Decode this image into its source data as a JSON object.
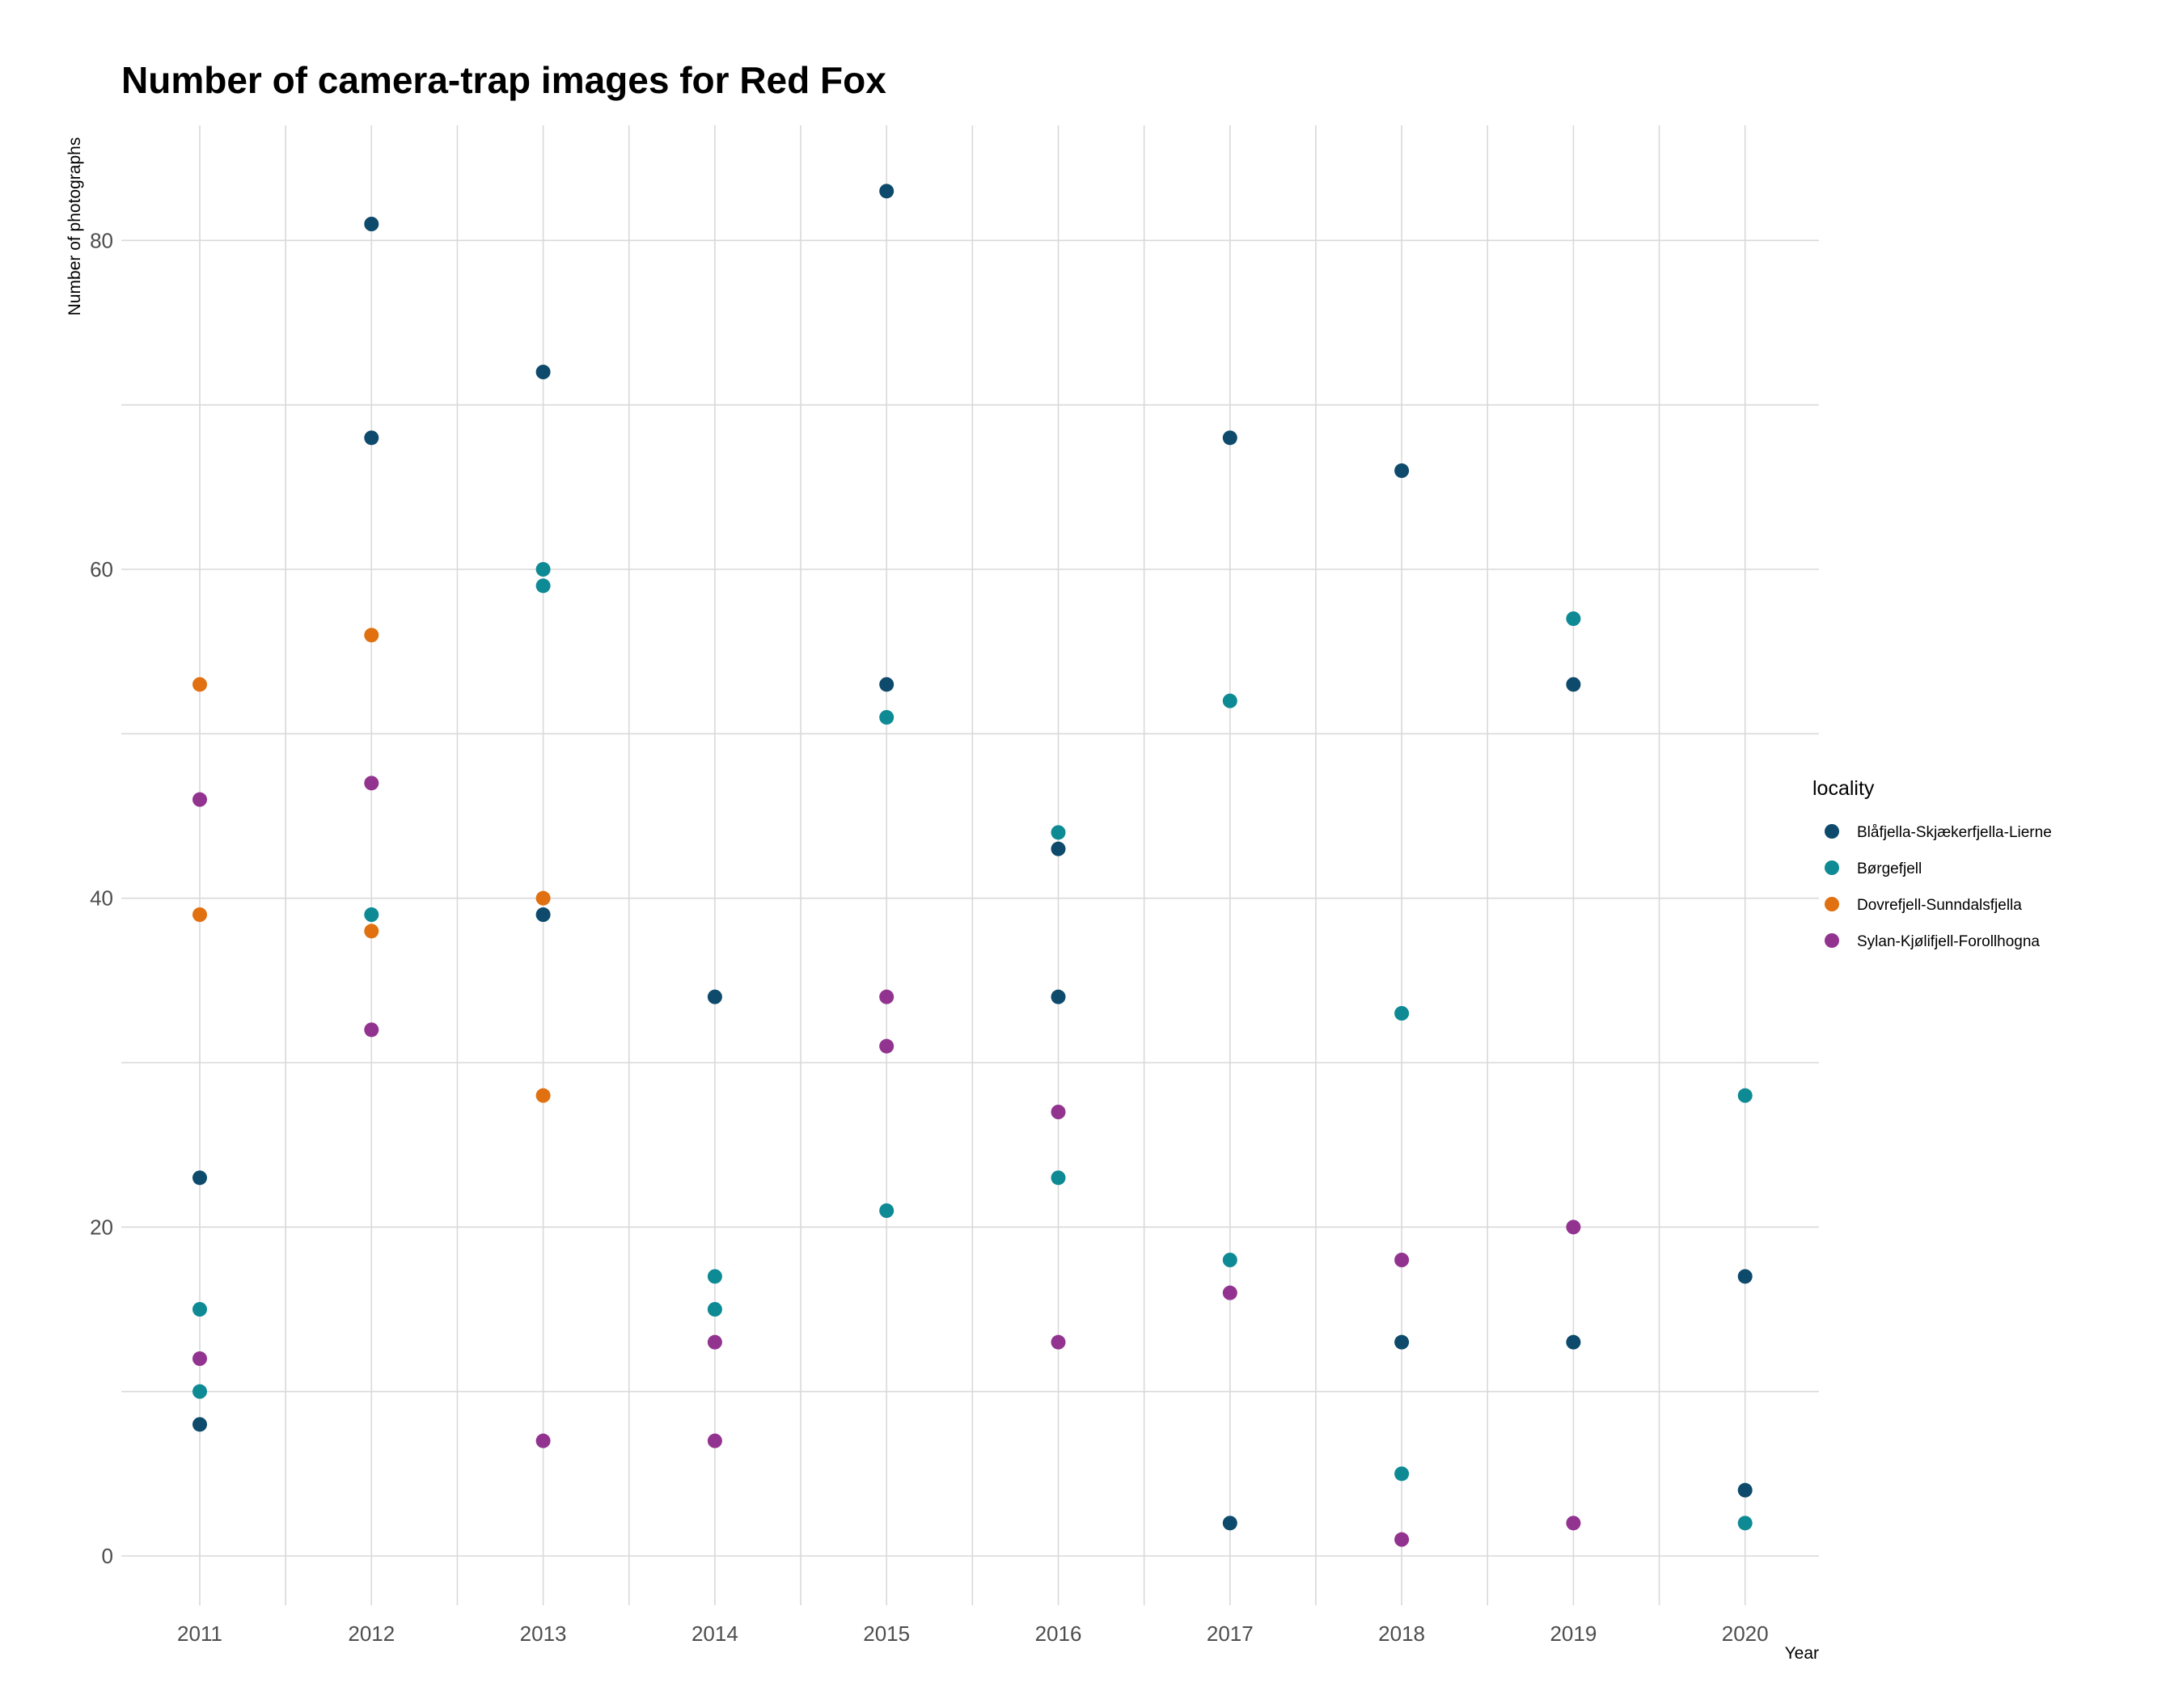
{
  "chart_data": {
    "type": "scatter",
    "title": "Number of camera-trap images for Red Fox",
    "xlabel": "Year",
    "ylabel": "Number of photographs",
    "x_categories": [
      "2011",
      "2012",
      "2013",
      "2014",
      "2015",
      "2016",
      "2017",
      "2018",
      "2019",
      "2020"
    ],
    "y_ticks": [
      0,
      20,
      40,
      60,
      80
    ],
    "ylim": [
      -3,
      87
    ],
    "grid": true,
    "legend": {
      "title": "locality",
      "placement": "right"
    },
    "series": [
      {
        "name": "Blåfjella-Skjækerfjella-Lierne",
        "color": "#0d4a6b",
        "points": [
          {
            "x": "2011",
            "y": 23
          },
          {
            "x": "2011",
            "y": 8
          },
          {
            "x": "2012",
            "y": 81
          },
          {
            "x": "2012",
            "y": 68
          },
          {
            "x": "2013",
            "y": 72
          },
          {
            "x": "2013",
            "y": 39
          },
          {
            "x": "2014",
            "y": 34
          },
          {
            "x": "2015",
            "y": 83
          },
          {
            "x": "2015",
            "y": 53
          },
          {
            "x": "2016",
            "y": 43
          },
          {
            "x": "2016",
            "y": 34
          },
          {
            "x": "2017",
            "y": 68
          },
          {
            "x": "2017",
            "y": 2
          },
          {
            "x": "2018",
            "y": 66
          },
          {
            "x": "2018",
            "y": 13
          },
          {
            "x": "2019",
            "y": 53
          },
          {
            "x": "2019",
            "y": 13
          },
          {
            "x": "2020",
            "y": 17
          },
          {
            "x": "2020",
            "y": 4
          }
        ]
      },
      {
        "name": "Børgefjell",
        "color": "#0e8a94",
        "points": [
          {
            "x": "2011",
            "y": 15
          },
          {
            "x": "2011",
            "y": 10
          },
          {
            "x": "2012",
            "y": 39
          },
          {
            "x": "2013",
            "y": 60
          },
          {
            "x": "2013",
            "y": 59
          },
          {
            "x": "2014",
            "y": 17
          },
          {
            "x": "2014",
            "y": 15
          },
          {
            "x": "2015",
            "y": 51
          },
          {
            "x": "2015",
            "y": 21
          },
          {
            "x": "2016",
            "y": 44
          },
          {
            "x": "2016",
            "y": 23
          },
          {
            "x": "2017",
            "y": 52
          },
          {
            "x": "2017",
            "y": 18
          },
          {
            "x": "2018",
            "y": 33
          },
          {
            "x": "2018",
            "y": 5
          },
          {
            "x": "2019",
            "y": 57
          },
          {
            "x": "2020",
            "y": 28
          },
          {
            "x": "2020",
            "y": 2
          }
        ]
      },
      {
        "name": "Dovrefjell-Sunndalsfjella",
        "color": "#e07010",
        "points": [
          {
            "x": "2011",
            "y": 53
          },
          {
            "x": "2011",
            "y": 39
          },
          {
            "x": "2012",
            "y": 56
          },
          {
            "x": "2012",
            "y": 38
          },
          {
            "x": "2013",
            "y": 40
          },
          {
            "x": "2013",
            "y": 28
          }
        ]
      },
      {
        "name": "Sylan-Kjølifjell-Forollhogna",
        "color": "#923390",
        "points": [
          {
            "x": "2011",
            "y": 46
          },
          {
            "x": "2011",
            "y": 12
          },
          {
            "x": "2012",
            "y": 47
          },
          {
            "x": "2012",
            "y": 32
          },
          {
            "x": "2013",
            "y": 7
          },
          {
            "x": "2014",
            "y": 13
          },
          {
            "x": "2014",
            "y": 7
          },
          {
            "x": "2015",
            "y": 34
          },
          {
            "x": "2015",
            "y": 31
          },
          {
            "x": "2016",
            "y": 27
          },
          {
            "x": "2016",
            "y": 13
          },
          {
            "x": "2017",
            "y": 16
          },
          {
            "x": "2018",
            "y": 18
          },
          {
            "x": "2018",
            "y": 1
          },
          {
            "x": "2019",
            "y": 20
          },
          {
            "x": "2019",
            "y": 2
          }
        ]
      }
    ]
  }
}
